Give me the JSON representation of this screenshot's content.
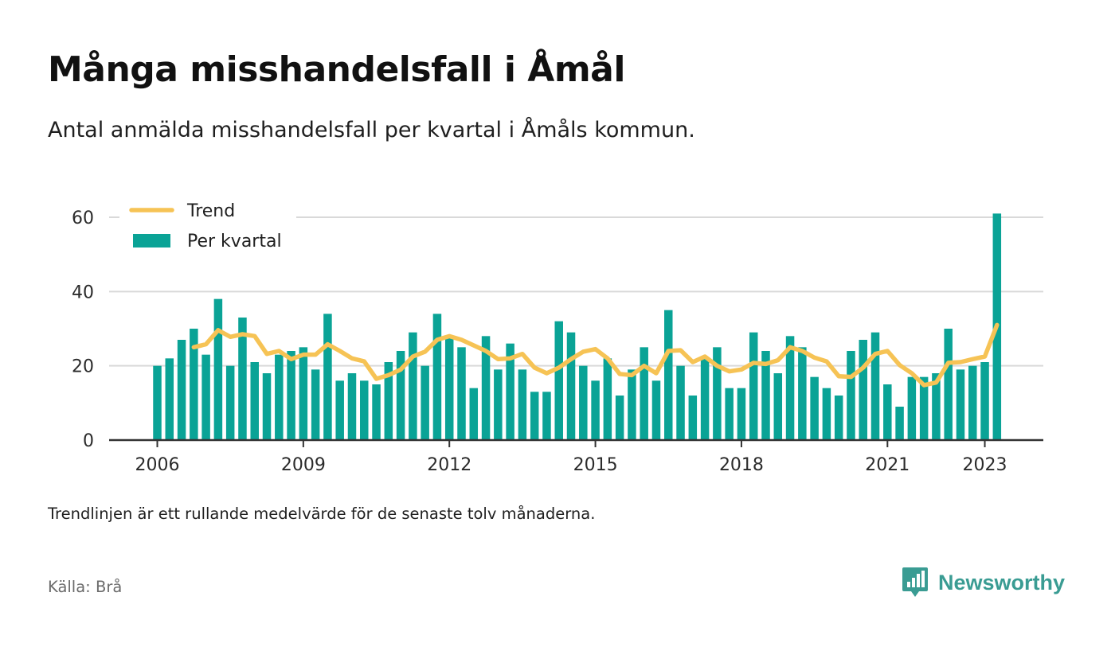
{
  "title": "Många misshandelsfall i Åmål",
  "subtitle": "Antal anmälda misshandelsfall per kvartal i Åmåls kommun.",
  "footnote": "Trendlinjen är ett rullande medelvärde för de senaste tolv månaderna.",
  "source": "Källa: Brå",
  "brand": {
    "name": "Newsworthy",
    "icon": "newsworthy-logo-icon",
    "color": "#3a9c93"
  },
  "colors": {
    "bars": "#0aa396",
    "trend": "#f6c355",
    "grid": "#d9d9d9",
    "baseline": "#333333"
  },
  "chart_data": {
    "type": "bar",
    "x_start": "2006 Q1",
    "x_tick_labels": [
      "2006",
      "2009",
      "2012",
      "2015",
      "2018",
      "2021",
      "2023"
    ],
    "y_ticks": [
      0,
      20,
      40,
      60
    ],
    "ylim": [
      0,
      60
    ],
    "grid": true,
    "legend_position": "top-left",
    "series": [
      {
        "name": "Per kvartal",
        "type": "bar",
        "values": [
          20,
          22,
          27,
          30,
          23,
          38,
          20,
          33,
          21,
          18,
          23,
          24,
          25,
          19,
          34,
          16,
          18,
          16,
          15,
          21,
          24,
          29,
          20,
          34,
          28,
          25,
          14,
          28,
          19,
          26,
          19,
          13,
          13,
          32,
          29,
          20,
          16,
          22,
          12,
          19,
          25,
          16,
          35,
          20,
          12,
          22,
          25,
          14,
          14,
          29,
          24,
          18,
          28,
          25,
          17,
          14,
          12,
          24,
          27,
          29,
          15,
          9,
          17,
          17,
          18,
          30,
          19,
          20,
          21,
          61
        ]
      },
      {
        "name": "Trend",
        "type": "line",
        "values": [
          null,
          null,
          null,
          25,
          25.8,
          29.6,
          27.8,
          28.5,
          28,
          23.2,
          24,
          21.8,
          23,
          23,
          25.8,
          24,
          22,
          21.2,
          16.5,
          17.5,
          19,
          22.5,
          23.8,
          27,
          28,
          27,
          25.5,
          24,
          21.8,
          22,
          23.2,
          19.5,
          18,
          19.5,
          21.8,
          23.8,
          24.5,
          22,
          17.8,
          17.5,
          20,
          18,
          24,
          24.2,
          21,
          22.5,
          20,
          18.5,
          19,
          20.8,
          20.5,
          21.5,
          25,
          24,
          22.2,
          21.2,
          17.2,
          17,
          19.5,
          23.2,
          24,
          20.2,
          18,
          14.8,
          15.5,
          20.8,
          21,
          21.8,
          22.5,
          31
        ]
      }
    ]
  }
}
